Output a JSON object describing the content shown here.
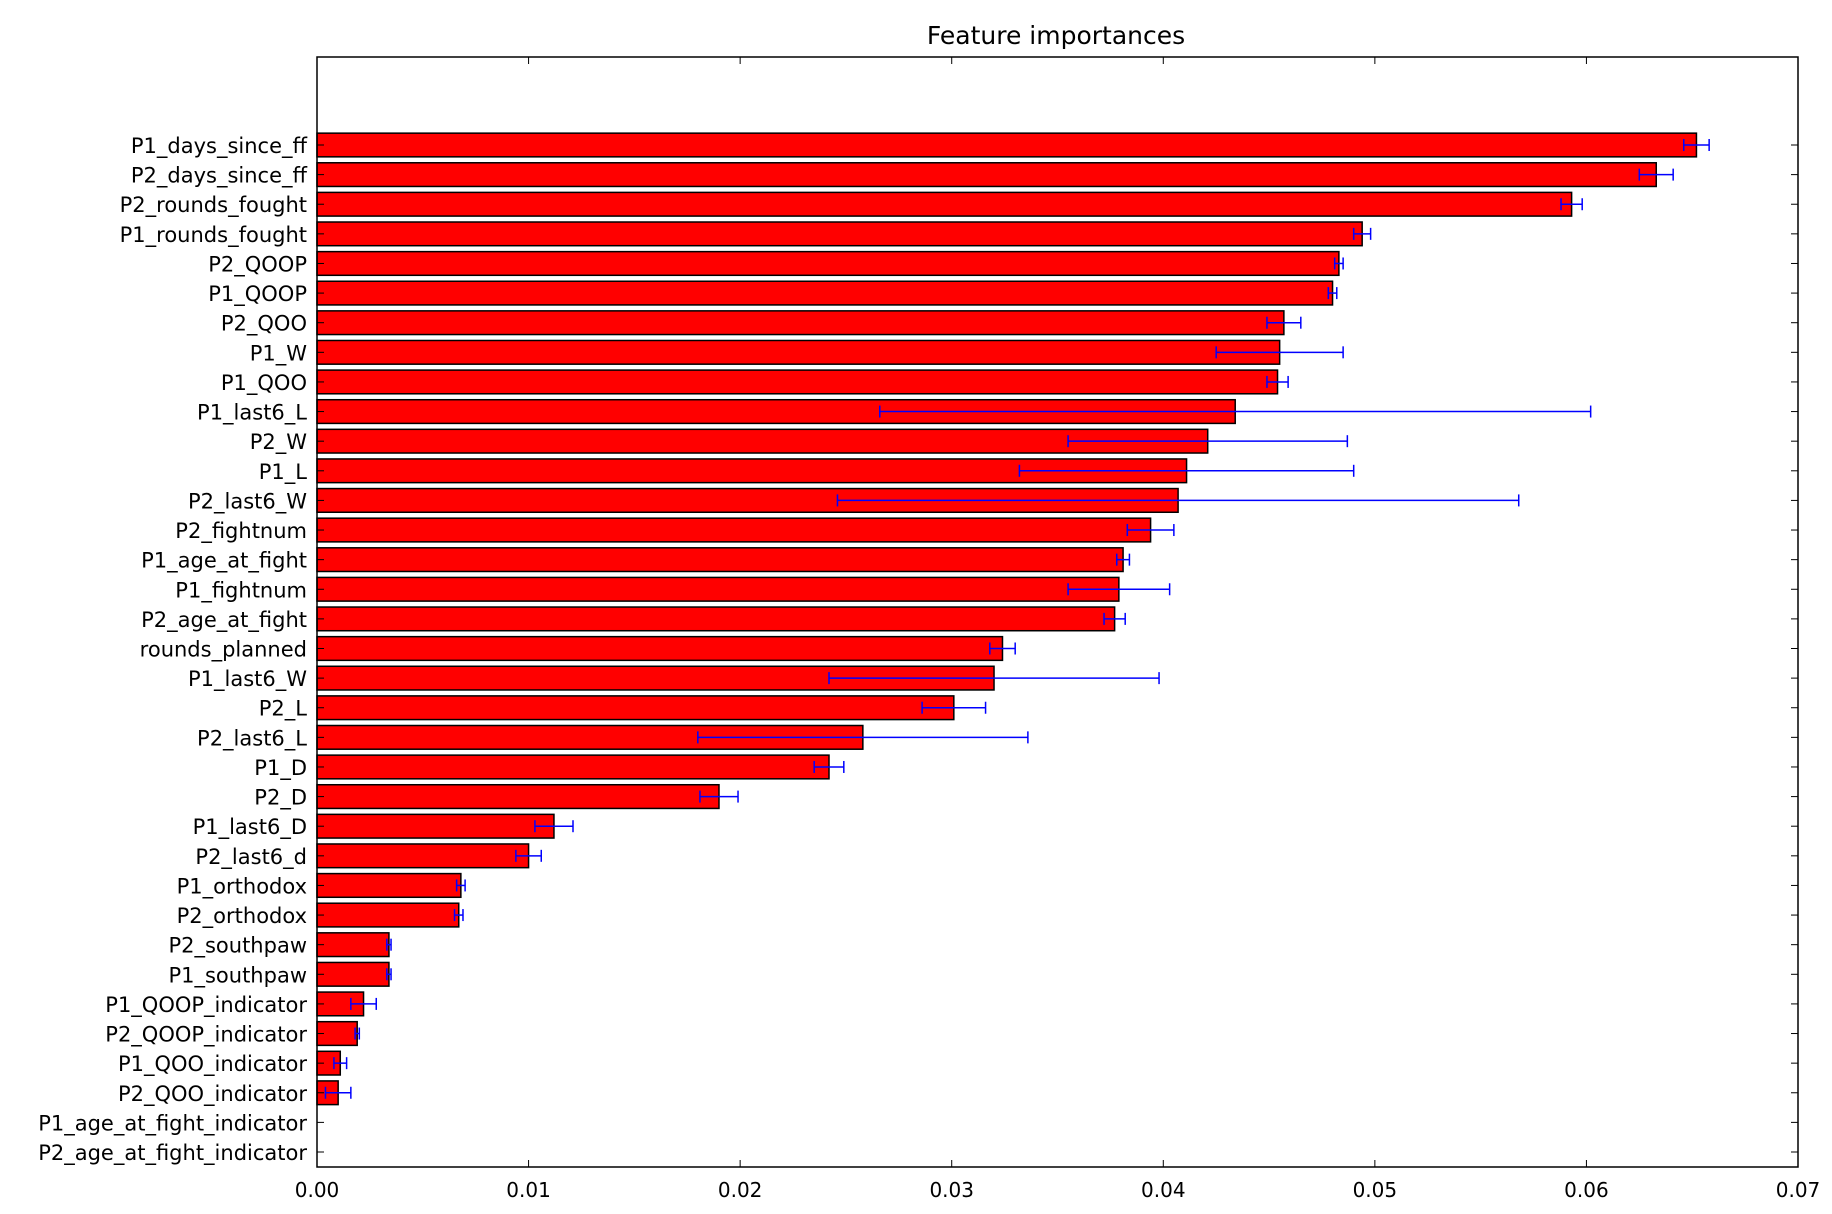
{
  "chart_data": {
    "type": "bar",
    "orientation": "horizontal",
    "title": "Feature importances",
    "xlabel": "",
    "ylabel": "",
    "xlim": [
      0.0,
      0.07
    ],
    "xticks": [
      "0.00",
      "0.01",
      "0.02",
      "0.03",
      "0.04",
      "0.05",
      "0.06",
      "0.07"
    ],
    "bar_color": "#ff0000",
    "error_color": "#0000ff",
    "grid": false,
    "categories": [
      "P1_days_since_ff",
      "P2_days_since_ff",
      "P2_rounds_fought",
      "P1_rounds_fought",
      "P2_QOOP",
      "P1_QOOP",
      "P2_QOO",
      "P1_W",
      "P1_QOO",
      "P1_last6_L",
      "P2_W",
      "P1_L",
      "P2_last6_W",
      "P2_fightnum",
      "P1_age_at_fight",
      "P1_fightnum",
      "P2_age_at_fight",
      "rounds_planned",
      "P1_last6_W",
      "P2_L",
      "P2_last6_L",
      "P1_D",
      "P2_D",
      "P1_last6_D",
      "P2_last6_d",
      "P1_orthodox",
      "P2_orthodox",
      "P2_southpaw",
      "P1_southpaw",
      "P1_QOOP_indicator",
      "P2_QOOP_indicator",
      "P1_QOO_indicator",
      "P2_QOO_indicator",
      "P1_age_at_fight_indicator",
      "P2_age_at_fight_indicator"
    ],
    "values": [
      0.0652,
      0.0633,
      0.0593,
      0.0494,
      0.0483,
      0.048,
      0.0457,
      0.0455,
      0.0454,
      0.0434,
      0.0421,
      0.0411,
      0.0407,
      0.0394,
      0.0381,
      0.0379,
      0.0377,
      0.0324,
      0.032,
      0.0301,
      0.0258,
      0.0242,
      0.019,
      0.0112,
      0.01,
      0.0068,
      0.0067,
      0.0034,
      0.0034,
      0.0022,
      0.0019,
      0.0011,
      0.001,
      0.0,
      0.0
    ],
    "errors": [
      0.0006,
      0.0008,
      0.0005,
      0.0004,
      0.0002,
      0.0002,
      0.0008,
      0.003,
      0.0005,
      0.0168,
      0.0066,
      0.0079,
      0.0161,
      0.0011,
      0.0003,
      0.0024,
      0.0005,
      0.0006,
      0.0078,
      0.0015,
      0.0078,
      0.0007,
      0.0009,
      0.0009,
      0.0006,
      0.0002,
      0.0002,
      0.0001,
      0.0001,
      0.0006,
      0.0001,
      0.0003,
      0.0006,
      0.0,
      0.0
    ]
  }
}
